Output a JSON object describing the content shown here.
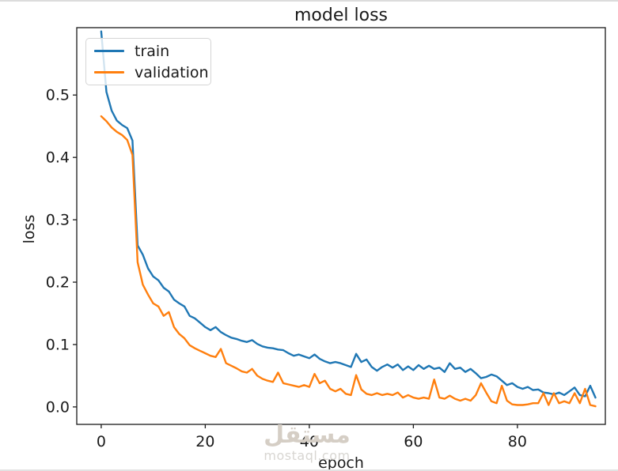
{
  "page": {
    "background": "#ffffff",
    "top_border_color": "#dcdcdc",
    "bottom_border_color": "#e2e2e2"
  },
  "watermark": {
    "arabic": "مستقل",
    "latin": "mostaql.com",
    "arabic_color": "#d5cec5",
    "latin_color": "#d8d6d2"
  },
  "chart_data": {
    "type": "line",
    "title": "model loss",
    "xlabel": "epoch",
    "ylabel": "loss",
    "x": "epoch index, one point per epoch from 0 to 95",
    "xlim": [
      -4.7,
      96.9
    ],
    "ylim": [
      -0.028,
      0.608
    ],
    "x_ticks": [
      0,
      20,
      40,
      60,
      80
    ],
    "y_ticks": [
      "0.0",
      "0.1",
      "0.2",
      "0.3",
      "0.4",
      "0.5"
    ],
    "grid": false,
    "text_color": "#1a1a1a",
    "spine_color": "#1a1a1a",
    "legend": {
      "position": "upper-left",
      "entries": [
        "train",
        "validation"
      ]
    },
    "series": [
      {
        "name": "train",
        "color": "#1f77b4",
        "values": [
          0.602,
          0.505,
          0.475,
          0.459,
          0.452,
          0.447,
          0.427,
          0.259,
          0.244,
          0.222,
          0.209,
          0.203,
          0.191,
          0.185,
          0.172,
          0.166,
          0.161,
          0.146,
          0.142,
          0.135,
          0.128,
          0.123,
          0.128,
          0.12,
          0.115,
          0.111,
          0.109,
          0.106,
          0.104,
          0.107,
          0.101,
          0.097,
          0.095,
          0.094,
          0.092,
          0.091,
          0.086,
          0.082,
          0.084,
          0.081,
          0.078,
          0.084,
          0.077,
          0.073,
          0.07,
          0.072,
          0.07,
          0.067,
          0.064,
          0.085,
          0.072,
          0.076,
          0.064,
          0.058,
          0.064,
          0.068,
          0.063,
          0.068,
          0.059,
          0.065,
          0.059,
          0.067,
          0.061,
          0.066,
          0.061,
          0.063,
          0.056,
          0.07,
          0.061,
          0.063,
          0.056,
          0.061,
          0.054,
          0.046,
          0.048,
          0.052,
          0.049,
          0.042,
          0.035,
          0.038,
          0.032,
          0.029,
          0.032,
          0.027,
          0.028,
          0.023,
          0.022,
          0.02,
          0.023,
          0.019,
          0.025,
          0.031,
          0.019,
          0.017,
          0.034,
          0.015
        ]
      },
      {
        "name": "validation",
        "color": "#ff7f0e",
        "values": [
          0.466,
          0.458,
          0.448,
          0.441,
          0.436,
          0.428,
          0.404,
          0.232,
          0.196,
          0.18,
          0.166,
          0.161,
          0.146,
          0.152,
          0.128,
          0.117,
          0.11,
          0.099,
          0.094,
          0.09,
          0.086,
          0.082,
          0.08,
          0.093,
          0.07,
          0.066,
          0.062,
          0.057,
          0.055,
          0.061,
          0.05,
          0.045,
          0.042,
          0.04,
          0.055,
          0.038,
          0.036,
          0.034,
          0.032,
          0.035,
          0.032,
          0.053,
          0.038,
          0.042,
          0.029,
          0.025,
          0.029,
          0.021,
          0.019,
          0.051,
          0.028,
          0.021,
          0.019,
          0.022,
          0.019,
          0.021,
          0.019,
          0.023,
          0.015,
          0.019,
          0.015,
          0.013,
          0.015,
          0.013,
          0.044,
          0.015,
          0.013,
          0.018,
          0.013,
          0.01,
          0.013,
          0.01,
          0.019,
          0.038,
          0.023,
          0.009,
          0.006,
          0.034,
          0.01,
          0.004,
          0.003,
          0.003,
          0.004,
          0.006,
          0.006,
          0.022,
          0.003,
          0.022,
          0.006,
          0.009,
          0.006,
          0.022,
          0.006,
          0.029,
          0.003,
          0.001
        ]
      }
    ]
  }
}
